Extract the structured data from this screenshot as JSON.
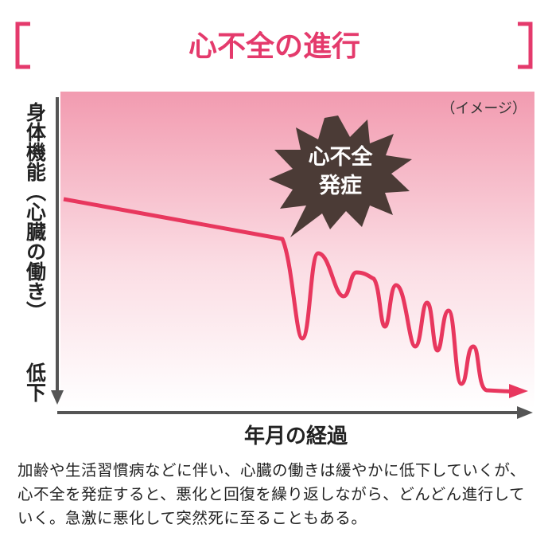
{
  "header": {
    "title": "心不全の進行"
  },
  "chart": {
    "note": "（イメージ）",
    "event": [
      "心不全",
      "発症"
    ],
    "y_axis_label": "身体機能（心臓の働き）",
    "y_axis_end": "低下",
    "x_axis_label": "年月の経過"
  },
  "caption": "加齢や生活習慣病などに伴い、心臓の働きは緩やかに低下していくが、心不全を発症すると、悪化と回復を繰り返しながら、どんどん進行していく。急激に悪化して突然死に至ることもある。"
}
